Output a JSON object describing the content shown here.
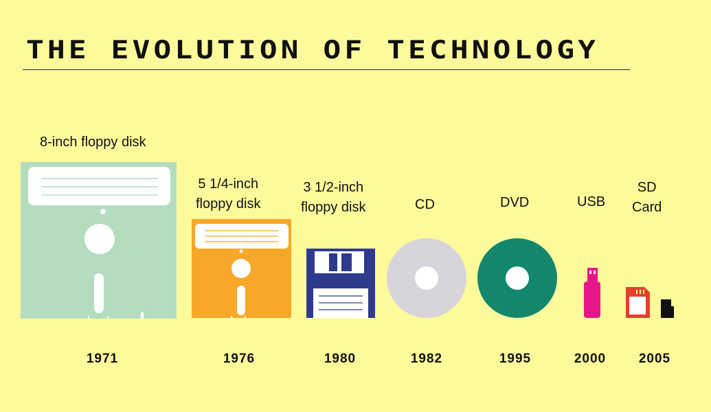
{
  "title": "THE EVOLUTION OF TECHNOLOGY",
  "items": [
    {
      "label": "8-inch floppy disk",
      "year": "1971",
      "color": "#b4dcbf"
    },
    {
      "label_lines": [
        "5 1/4-inch",
        "floppy disk"
      ],
      "year": "1976",
      "color": "#f7a828"
    },
    {
      "label_lines": [
        "3 1/2-inch",
        "floppy disk"
      ],
      "year": "1980",
      "color": "#2e3a8c"
    },
    {
      "label": "CD",
      "year": "1982",
      "color": "#d8d4dc"
    },
    {
      "label": "DVD",
      "year": "1995",
      "color": "#12876d"
    },
    {
      "label": "USB",
      "year": "2000",
      "color": "#e8168a"
    },
    {
      "label_lines": [
        "SD",
        "Card"
      ],
      "year": "2005",
      "color": "#e3402a"
    }
  ]
}
